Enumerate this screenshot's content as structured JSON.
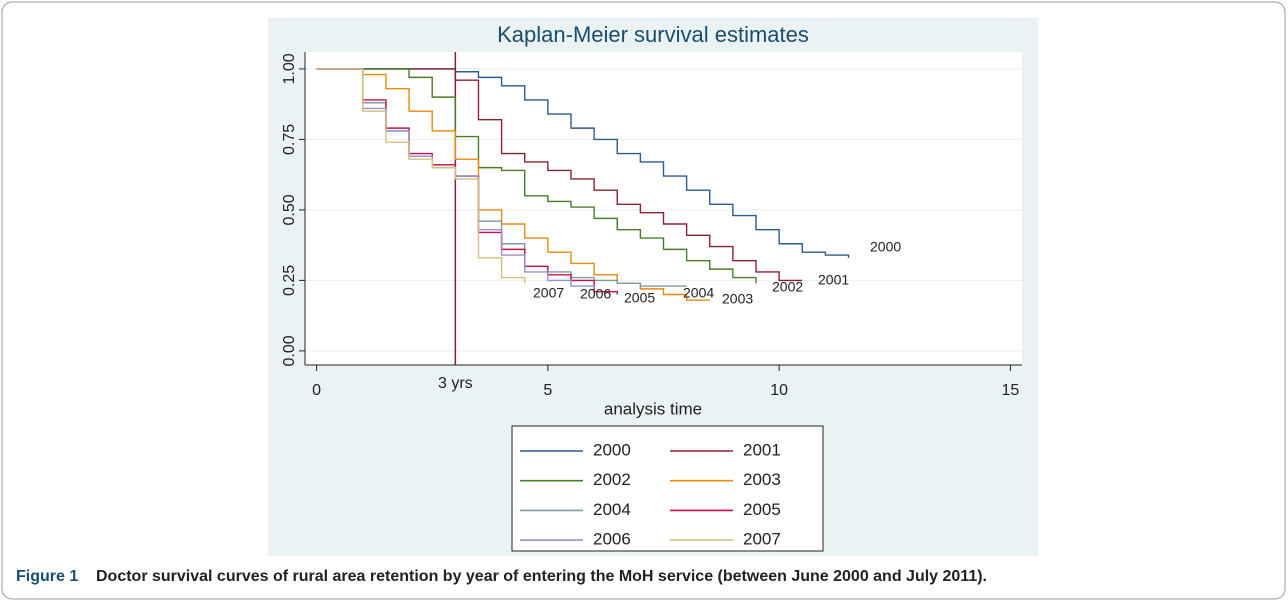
{
  "chart_data": {
    "type": "line",
    "step": true,
    "title": "Kaplan-Meier survival estimates",
    "x_label": "analysis time",
    "x": [
      0,
      0.5,
      1,
      1.5,
      2,
      2.5,
      3,
      3.5,
      4,
      4.5,
      5,
      5.5,
      6,
      6.5,
      7,
      7.5,
      8,
      8.5,
      9,
      9.5,
      10,
      10.5,
      11,
      11.5
    ],
    "xlim": [
      -0.25,
      15.25
    ],
    "xticks": [
      0,
      5,
      10,
      15
    ],
    "ylim": [
      -0.05,
      1.06
    ],
    "yticks": [
      {
        "value": 0,
        "label": "0.00"
      },
      {
        "value": 0.25,
        "label": "0.25"
      },
      {
        "value": 0.5,
        "label": "0.50"
      },
      {
        "value": 0.75,
        "label": "0.75"
      },
      {
        "value": 1,
        "label": "1.00"
      }
    ],
    "grid": true,
    "vline": {
      "x": 3,
      "label": "3 yrs",
      "color": "#8b2232"
    },
    "series": [
      {
        "name": "2000",
        "color": "#2b5c8a",
        "values": [
          1,
          1,
          1,
          1,
          1,
          1,
          0.99,
          0.97,
          0.94,
          0.89,
          0.84,
          0.79,
          0.75,
          0.7,
          0.67,
          0.62,
          0.57,
          0.52,
          0.48,
          0.43,
          0.38,
          0.35,
          0.34,
          0.33
        ]
      },
      {
        "name": "2001",
        "color": "#8b2232",
        "values": [
          1,
          1,
          1,
          1,
          1,
          1,
          0.96,
          0.82,
          0.7,
          0.67,
          0.64,
          0.61,
          0.57,
          0.52,
          0.49,
          0.45,
          0.41,
          0.37,
          0.32,
          0.28,
          0.25,
          0.25,
          null,
          null
        ]
      },
      {
        "name": "2002",
        "color": "#4a7d2a",
        "values": [
          1,
          1,
          1,
          1,
          0.97,
          0.9,
          0.76,
          0.65,
          0.64,
          0.55,
          0.53,
          0.51,
          0.47,
          0.43,
          0.4,
          0.36,
          0.32,
          0.29,
          0.26,
          0.24,
          null,
          null,
          null,
          null
        ]
      },
      {
        "name": "2003",
        "color": "#e88a0c",
        "values": [
          1,
          1,
          0.98,
          0.93,
          0.85,
          0.78,
          0.68,
          0.5,
          0.45,
          0.4,
          0.35,
          0.31,
          0.27,
          0.24,
          0.22,
          0.2,
          0.18,
          0.18,
          null,
          null,
          null,
          null,
          null,
          null
        ]
      },
      {
        "name": "2004",
        "color": "#7f9aa0",
        "values": [
          1,
          1,
          0.88,
          0.78,
          0.69,
          0.66,
          0.62,
          0.46,
          0.38,
          0.3,
          0.28,
          0.26,
          0.25,
          0.24,
          0.23,
          0.23,
          0.23,
          null,
          null,
          null,
          null,
          null,
          null,
          null
        ]
      },
      {
        "name": "2005",
        "color": "#c7114a",
        "values": [
          1,
          1,
          0.89,
          0.79,
          0.7,
          0.66,
          0.62,
          0.42,
          0.36,
          0.3,
          0.27,
          0.25,
          0.21,
          0.2,
          null,
          null,
          null,
          null,
          null,
          null,
          null,
          null,
          null,
          null
        ]
      },
      {
        "name": "2006",
        "color": "#9a8fd0",
        "values": [
          1,
          1,
          0.86,
          0.78,
          0.69,
          0.65,
          0.62,
          0.43,
          0.34,
          0.28,
          0.25,
          0.23,
          0.22,
          null,
          null,
          null,
          null,
          null,
          null,
          null,
          null,
          null,
          null,
          null
        ]
      },
      {
        "name": "2007",
        "color": "#d1c07e",
        "values": [
          1,
          1,
          0.85,
          0.74,
          0.68,
          0.65,
          0.61,
          0.33,
          0.26,
          0.24,
          null,
          null,
          null,
          null,
          null,
          null,
          null,
          null,
          null,
          null,
          null,
          null,
          null,
          null
        ]
      }
    ]
  },
  "caption": {
    "label": "Figure 1",
    "text": "Doctor survival curves of rural area retention by year of entering the MoH service (between June 2000 and July 2011)."
  }
}
